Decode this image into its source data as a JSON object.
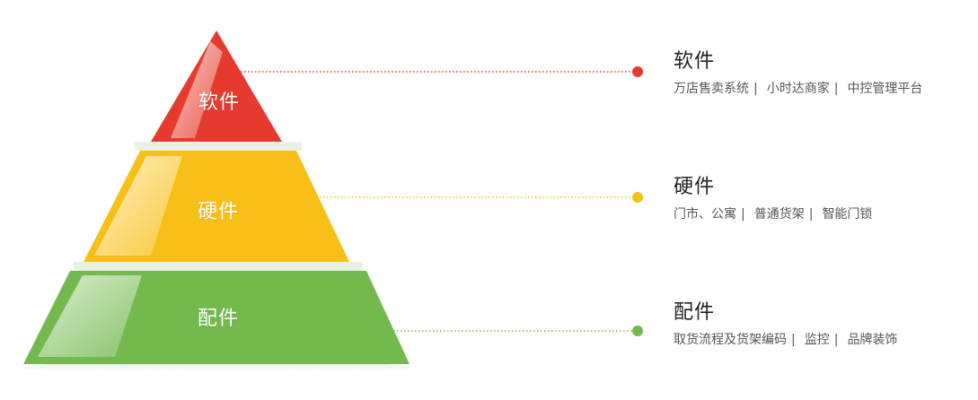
{
  "tiers": [
    {
      "label": "软件",
      "color": "#e63a2e",
      "title": "软件",
      "items": [
        "万店售卖系统",
        "小时达商家",
        "中控管理平台"
      ]
    },
    {
      "label": "硬件",
      "color": "#f8bf17",
      "title": "硬件",
      "items": [
        "门市、公寓",
        "普通货架",
        "智能门锁"
      ]
    },
    {
      "label": "配件",
      "color": "#73b94e",
      "title": "配件",
      "items": [
        "取货流程及货架编码",
        "监控",
        "品牌装饰"
      ]
    }
  ],
  "separator_char": "|"
}
